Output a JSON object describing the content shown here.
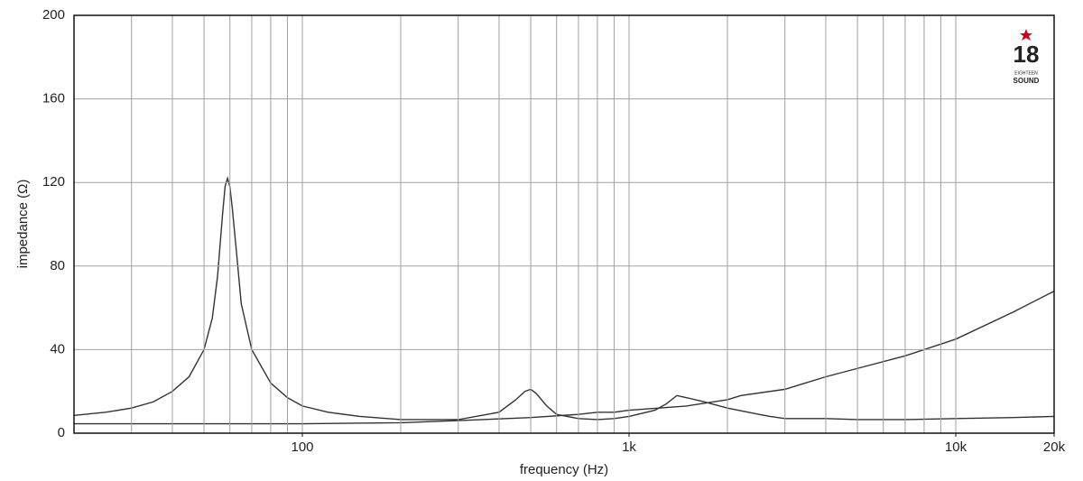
{
  "chart_data": {
    "type": "line",
    "x_label": "frequency (Hz)",
    "y_label": "impedance (Ω)",
    "xlim": [
      20,
      20000
    ],
    "ylim": [
      0,
      200
    ],
    "xscale": "log",
    "grid": true,
    "xticks": [
      100,
      {
        "value": 1000,
        "label": "1k"
      },
      {
        "value": 10000,
        "label": "10k"
      },
      {
        "value": 20000,
        "label": "20k"
      }
    ],
    "xgrid": [
      30,
      40,
      50,
      60,
      70,
      80,
      90,
      100,
      200,
      300,
      400,
      500,
      600,
      700,
      800,
      900,
      1000,
      2000,
      3000,
      4000,
      5000,
      6000,
      7000,
      8000,
      9000,
      10000
    ],
    "yticks": [
      0,
      40,
      80,
      120,
      160,
      200
    ],
    "series": [
      {
        "color": "#333333",
        "x": [
          20,
          25,
          30,
          35,
          40,
          45,
          50,
          53,
          55,
          57,
          58,
          59,
          60,
          61,
          63,
          65,
          70,
          80,
          90,
          100,
          120,
          150,
          200,
          300,
          400,
          450,
          480,
          500,
          520,
          560,
          600,
          700,
          800,
          900,
          1000,
          1200,
          1300,
          1400,
          1500,
          1700,
          2000,
          2500,
          2700,
          3000,
          4000,
          5000,
          7000,
          10000,
          15000,
          20000
        ],
        "values": [
          8.5,
          10,
          12,
          15,
          20,
          27,
          40,
          55,
          75,
          105,
          118,
          122,
          118,
          108,
          85,
          62,
          40,
          24,
          17,
          13,
          10,
          8,
          6.5,
          6.5,
          10,
          16,
          20,
          21,
          19,
          13,
          9,
          7,
          6.5,
          7,
          8,
          11,
          14,
          18,
          17,
          15,
          12,
          9,
          8,
          7,
          7,
          6.5,
          6.5,
          7,
          7.5,
          8
        ]
      },
      {
        "color": "#333333",
        "x": [
          20,
          100,
          200,
          300,
          500,
          700,
          800,
          900,
          1000,
          1500,
          2000,
          2200,
          3000,
          4000,
          5000,
          7000,
          10000,
          15000,
          20000
        ],
        "values": [
          4.5,
          4.5,
          5,
          6,
          7.5,
          9,
          10,
          10,
          11,
          13,
          16,
          18,
          21,
          27,
          31,
          37,
          45,
          58,
          68
        ]
      }
    ]
  },
  "logo": {
    "number": "18",
    "line1": "EIGHTEEN",
    "line2": "SOUND"
  }
}
